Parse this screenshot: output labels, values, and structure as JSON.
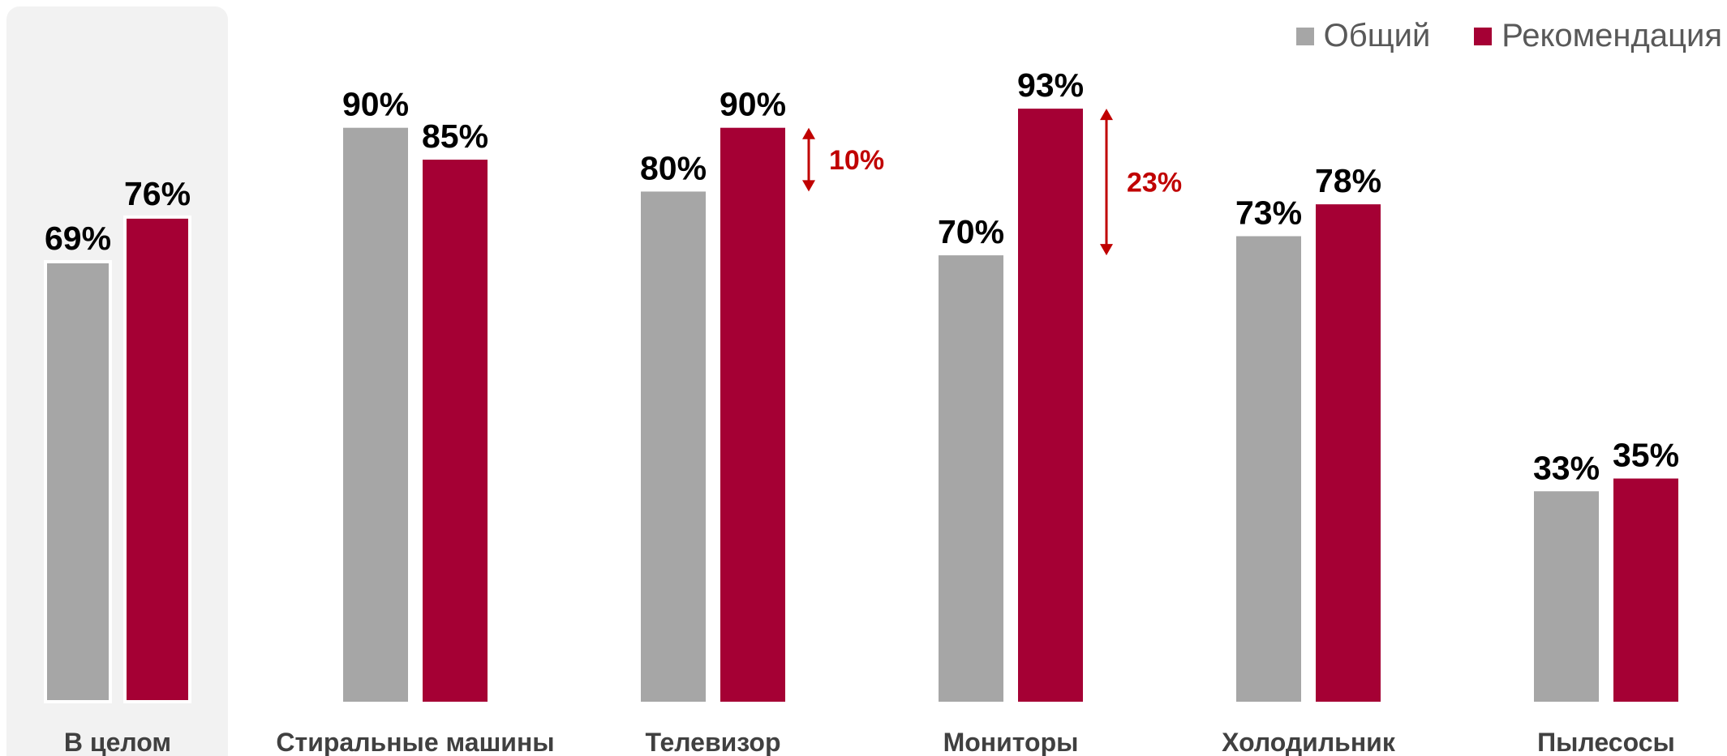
{
  "chart_data": {
    "type": "bar",
    "categories": [
      "В целом",
      "Стиральные машины",
      "Телевизор",
      "Мониторы",
      "Холодильник",
      "Пылесосы"
    ],
    "series": [
      {
        "name": "Общий",
        "color": "#a6a6a6",
        "values": [
          69,
          90,
          80,
          70,
          73,
          33
        ],
        "labels": [
          "69%",
          "90%",
          "80%",
          "70%",
          "73%",
          "33%"
        ]
      },
      {
        "name": "Рекомендация",
        "color": "#a50034",
        "values": [
          76,
          85,
          90,
          93,
          78,
          35
        ],
        "labels": [
          "76%",
          "85%",
          "90%",
          "93%",
          "78%",
          "35%"
        ]
      }
    ],
    "highlight_category": "В целом",
    "highlight_color": "#f2f2f2",
    "annotations": [
      {
        "category": "Телевизор",
        "from": 80,
        "to": 90,
        "label": "10%",
        "color": "#c00000"
      },
      {
        "category": "Мониторы",
        "from": 70,
        "to": 93,
        "label": "23%",
        "color": "#c00000"
      }
    ],
    "ylim": [
      0,
      100
    ],
    "legend_position": "top-right",
    "grid": false
  }
}
